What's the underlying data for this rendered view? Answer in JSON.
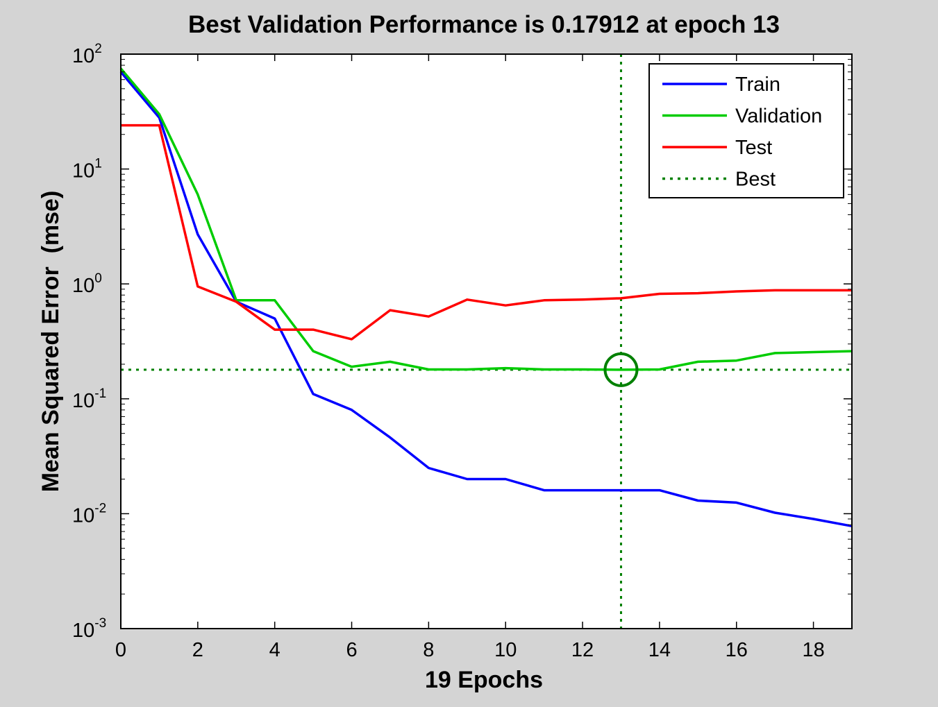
{
  "chart_data": {
    "type": "line",
    "title": "Best Validation Performance is 0.17912 at epoch 13",
    "xlabel": "19 Epochs",
    "ylabel": "Mean Squared Error  (mse)",
    "xlim": [
      0,
      19
    ],
    "ylim": [
      0.001,
      100
    ],
    "yscale": "log",
    "grid": false,
    "legend_position": "top-right",
    "x_ticks": [
      0,
      2,
      4,
      6,
      8,
      10,
      12,
      14,
      16,
      18
    ],
    "y_ticks": [
      {
        "value": 100,
        "base": "10",
        "exp": "2"
      },
      {
        "value": 10,
        "base": "10",
        "exp": "1"
      },
      {
        "value": 1,
        "base": "10",
        "exp": "0"
      },
      {
        "value": 0.1,
        "base": "10",
        "exp": "-1"
      },
      {
        "value": 0.01,
        "base": "10",
        "exp": "-2"
      },
      {
        "value": 0.001,
        "base": "10",
        "exp": "-3"
      }
    ],
    "x": [
      0,
      1,
      2,
      3,
      4,
      5,
      6,
      7,
      8,
      9,
      10,
      11,
      12,
      13,
      14,
      15,
      16,
      17,
      18,
      19
    ],
    "series": [
      {
        "name": "Train",
        "color": "#0000ff",
        "values": [
          70,
          28,
          2.7,
          0.7,
          0.5,
          0.11,
          0.08,
          0.046,
          0.025,
          0.02,
          0.02,
          0.016,
          0.016,
          0.016,
          0.016,
          0.013,
          0.0125,
          0.0102,
          0.009,
          0.0078
        ]
      },
      {
        "name": "Validation",
        "color": "#00cc00",
        "values": [
          75,
          30,
          6.0,
          0.72,
          0.72,
          0.26,
          0.19,
          0.21,
          0.18,
          0.18,
          0.185,
          0.18,
          0.18,
          0.17912,
          0.18,
          0.21,
          0.215,
          0.25,
          0.255,
          0.26
        ]
      },
      {
        "name": "Test",
        "color": "#ff0000",
        "values": [
          24,
          24,
          0.95,
          0.7,
          0.4,
          0.4,
          0.33,
          0.59,
          0.52,
          0.73,
          0.65,
          0.72,
          0.73,
          0.75,
          0.82,
          0.83,
          0.86,
          0.88,
          0.88,
          0.88
        ]
      }
    ],
    "best": {
      "name": "Best",
      "epoch": 13,
      "value": 0.17912,
      "color": "#008000"
    }
  }
}
